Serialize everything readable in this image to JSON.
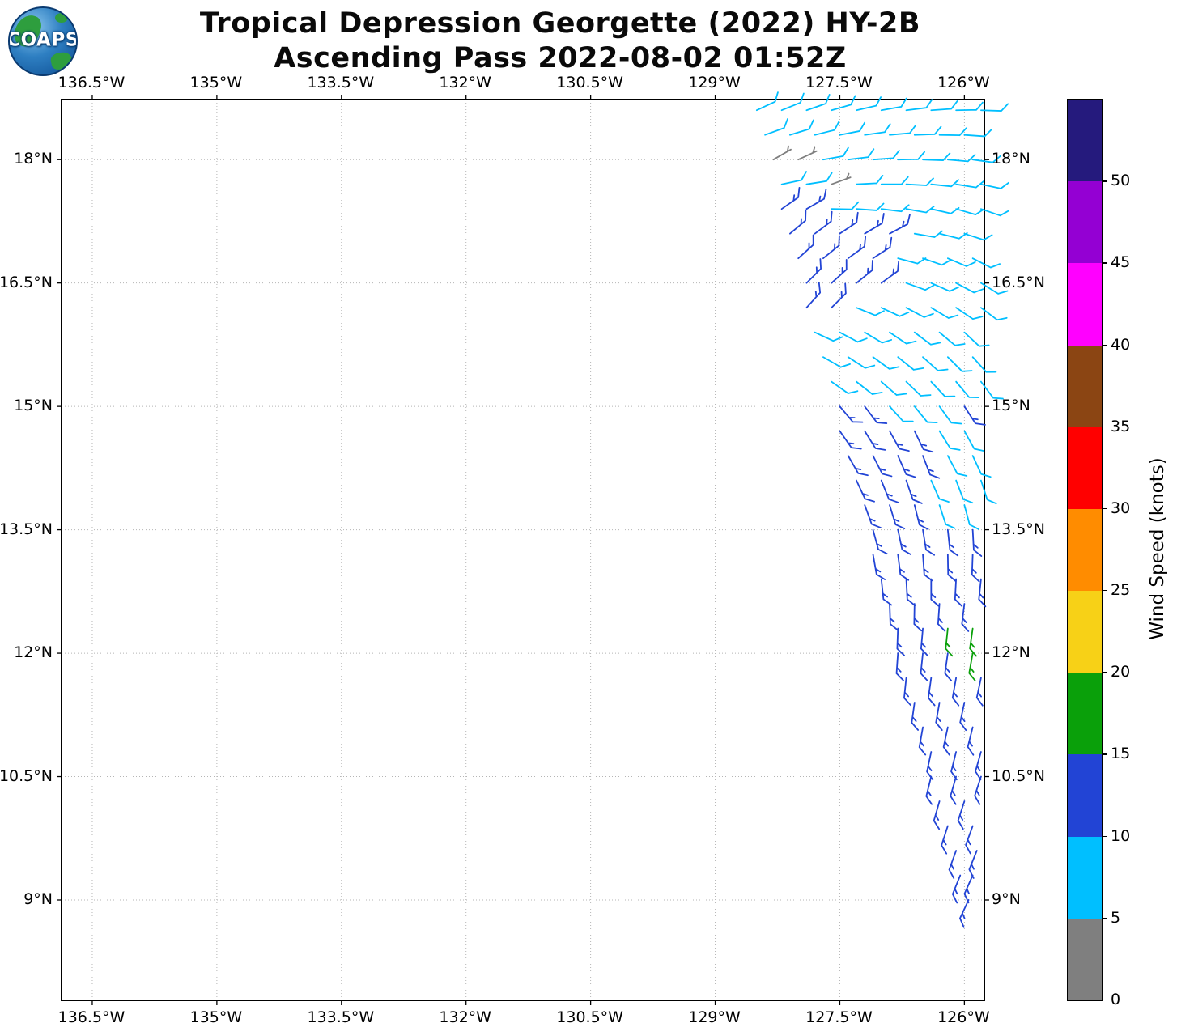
{
  "header": {
    "logo_text": "COAPS",
    "title_line1": "Tropical Depression Georgette (2022) HY-2B",
    "title_line2": "Ascending Pass 2022-08-02 01:52Z"
  },
  "chart_data": {
    "type": "wind_barb_map",
    "title": "Tropical Depression Georgette (2022) HY-2B",
    "subtitle": "Ascending Pass 2022-08-02 01:52Z",
    "grid": true,
    "x_axis": {
      "range": [
        -136.87,
        -125.76
      ],
      "ticks": [
        {
          "value": -136.5,
          "label": "136.5°W"
        },
        {
          "value": -135.0,
          "label": "135°W"
        },
        {
          "value": -133.5,
          "label": "133.5°W"
        },
        {
          "value": -132.0,
          "label": "132°W"
        },
        {
          "value": -130.5,
          "label": "130.5°W"
        },
        {
          "value": -129.0,
          "label": "129°W"
        },
        {
          "value": -127.5,
          "label": "127.5°W"
        },
        {
          "value": -126.0,
          "label": "126°W"
        }
      ]
    },
    "y_axis": {
      "range": [
        7.78,
        18.73
      ],
      "ticks": [
        {
          "value": 18.0,
          "label": "18°N"
        },
        {
          "value": 16.5,
          "label": "16.5°N"
        },
        {
          "value": 15.0,
          "label": "15°N"
        },
        {
          "value": 13.5,
          "label": "13.5°N"
        },
        {
          "value": 12.0,
          "label": "12°N"
        },
        {
          "value": 10.5,
          "label": "10.5°N"
        },
        {
          "value": 9.0,
          "label": "9°N"
        }
      ]
    },
    "colorbar": {
      "label": "Wind Speed (knots)",
      "min": 0,
      "max": 55,
      "tick_values": [
        0,
        5,
        10,
        15,
        20,
        25,
        30,
        35,
        40,
        45,
        50
      ],
      "segments": [
        {
          "from": 0,
          "to": 5,
          "color": "#7f7f7f"
        },
        {
          "from": 5,
          "to": 10,
          "color": "#00bfff"
        },
        {
          "from": 10,
          "to": 15,
          "color": "#2244d5"
        },
        {
          "from": 15,
          "to": 20,
          "color": "#0aa00a"
        },
        {
          "from": 20,
          "to": 25,
          "color": "#f7d117"
        },
        {
          "from": 25,
          "to": 30,
          "color": "#ff8c00"
        },
        {
          "from": 30,
          "to": 35,
          "color": "#ff0000"
        },
        {
          "from": 35,
          "to": 40,
          "color": "#8b4513"
        },
        {
          "from": 40,
          "to": 45,
          "color": "#ff00ff"
        },
        {
          "from": 45,
          "to": 50,
          "color": "#9400d3"
        },
        {
          "from": 50,
          "to": 55,
          "color": "#251a7d"
        }
      ]
    },
    "barb_units": {
      "speed": "knots",
      "direction": "degrees meteorological (from)"
    },
    "barbs": [
      [
        -128.5,
        18.6,
        8,
        65
      ],
      [
        -128.2,
        18.6,
        8,
        68
      ],
      [
        -127.9,
        18.6,
        8,
        71
      ],
      [
        -127.6,
        18.6,
        8,
        74
      ],
      [
        -127.3,
        18.6,
        8,
        77
      ],
      [
        -127.0,
        18.6,
        8,
        80
      ],
      [
        -126.7,
        18.6,
        8,
        83
      ],
      [
        -126.4,
        18.6,
        8,
        86
      ],
      [
        -126.1,
        18.6,
        8,
        89
      ],
      [
        -125.8,
        18.6,
        8,
        92
      ],
      [
        -128.4,
        18.3,
        8,
        70
      ],
      [
        -128.1,
        18.3,
        8,
        73
      ],
      [
        -127.8,
        18.3,
        8,
        76
      ],
      [
        -127.5,
        18.3,
        8,
        79
      ],
      [
        -127.2,
        18.3,
        8,
        82
      ],
      [
        -126.9,
        18.3,
        8,
        85
      ],
      [
        -126.6,
        18.3,
        8,
        88
      ],
      [
        -126.3,
        18.3,
        8,
        91
      ],
      [
        -126.0,
        18.3,
        8,
        94
      ],
      [
        -128.3,
        18.0,
        3,
        60
      ],
      [
        -128.0,
        18.0,
        3,
        65
      ],
      [
        -127.7,
        18.0,
        8,
        80
      ],
      [
        -127.4,
        18.0,
        8,
        83
      ],
      [
        -127.1,
        18.0,
        8,
        86
      ],
      [
        -126.8,
        18.0,
        8,
        89
      ],
      [
        -126.5,
        18.0,
        8,
        92
      ],
      [
        -126.2,
        18.0,
        8,
        95
      ],
      [
        -125.9,
        18.0,
        8,
        98
      ],
      [
        -128.2,
        17.7,
        8,
        78
      ],
      [
        -127.9,
        17.7,
        8,
        81
      ],
      [
        -127.6,
        17.7,
        3,
        70
      ],
      [
        -127.3,
        17.7,
        8,
        87
      ],
      [
        -127.0,
        17.7,
        8,
        90
      ],
      [
        -126.7,
        17.7,
        8,
        93
      ],
      [
        -126.4,
        17.7,
        8,
        96
      ],
      [
        -126.1,
        17.7,
        8,
        99
      ],
      [
        -125.8,
        17.7,
        8,
        102
      ],
      [
        -128.2,
        17.4,
        13,
        55
      ],
      [
        -127.9,
        17.4,
        13,
        60
      ],
      [
        -127.6,
        17.4,
        8,
        91
      ],
      [
        -127.3,
        17.4,
        8,
        94
      ],
      [
        -127.0,
        17.4,
        8,
        97
      ],
      [
        -126.7,
        17.4,
        8,
        100
      ],
      [
        -126.4,
        17.4,
        8,
        103
      ],
      [
        -126.1,
        17.4,
        8,
        106
      ],
      [
        -125.8,
        17.4,
        8,
        109
      ],
      [
        -128.1,
        17.1,
        13,
        50
      ],
      [
        -127.8,
        17.1,
        13,
        53
      ],
      [
        -127.5,
        17.1,
        13,
        56
      ],
      [
        -127.2,
        17.1,
        13,
        59
      ],
      [
        -126.9,
        17.1,
        13,
        62
      ],
      [
        -126.6,
        17.1,
        8,
        100
      ],
      [
        -126.3,
        17.1,
        8,
        104
      ],
      [
        -126.0,
        17.1,
        8,
        108
      ],
      [
        -128.0,
        16.8,
        13,
        48
      ],
      [
        -127.7,
        16.8,
        13,
        51
      ],
      [
        -127.4,
        16.8,
        13,
        54
      ],
      [
        -127.1,
        16.8,
        13,
        57
      ],
      [
        -126.8,
        16.8,
        8,
        105
      ],
      [
        -126.5,
        16.8,
        8,
        109
      ],
      [
        -126.2,
        16.8,
        8,
        113
      ],
      [
        -125.9,
        16.8,
        8,
        117
      ],
      [
        -127.9,
        16.5,
        13,
        45
      ],
      [
        -127.6,
        16.5,
        13,
        48
      ],
      [
        -127.3,
        16.5,
        13,
        51
      ],
      [
        -127.0,
        16.5,
        13,
        54
      ],
      [
        -126.7,
        16.5,
        8,
        110
      ],
      [
        -126.4,
        16.5,
        8,
        114
      ],
      [
        -126.1,
        16.5,
        8,
        118
      ],
      [
        -125.8,
        16.5,
        8,
        122
      ],
      [
        -127.9,
        16.2,
        13,
        42
      ],
      [
        -127.6,
        16.2,
        13,
        45
      ],
      [
        -127.3,
        16.2,
        8,
        112
      ],
      [
        -127.0,
        16.2,
        8,
        115
      ],
      [
        -126.7,
        16.2,
        8,
        118
      ],
      [
        -126.4,
        16.2,
        8,
        121
      ],
      [
        -126.1,
        16.2,
        8,
        124
      ],
      [
        -125.8,
        16.2,
        8,
        127
      ],
      [
        -127.8,
        15.9,
        8,
        115
      ],
      [
        -127.5,
        15.9,
        8,
        118
      ],
      [
        -127.2,
        15.9,
        8,
        121
      ],
      [
        -126.9,
        15.9,
        8,
        124
      ],
      [
        -126.6,
        15.9,
        8,
        127
      ],
      [
        -126.3,
        15.9,
        8,
        130
      ],
      [
        -126.0,
        15.9,
        8,
        133
      ],
      [
        -127.7,
        15.6,
        8,
        120
      ],
      [
        -127.4,
        15.6,
        8,
        123
      ],
      [
        -127.1,
        15.6,
        8,
        126
      ],
      [
        -126.8,
        15.6,
        8,
        129
      ],
      [
        -126.5,
        15.6,
        8,
        132
      ],
      [
        -126.2,
        15.6,
        8,
        135
      ],
      [
        -125.9,
        15.6,
        8,
        138
      ],
      [
        -127.6,
        15.3,
        8,
        125
      ],
      [
        -127.3,
        15.3,
        8,
        128
      ],
      [
        -127.0,
        15.3,
        8,
        131
      ],
      [
        -126.7,
        15.3,
        8,
        134
      ],
      [
        -126.4,
        15.3,
        8,
        137
      ],
      [
        -126.1,
        15.3,
        8,
        140
      ],
      [
        -125.8,
        15.3,
        8,
        143
      ],
      [
        -127.5,
        15.0,
        13,
        140
      ],
      [
        -127.2,
        15.0,
        13,
        143
      ],
      [
        -126.9,
        15.0,
        8,
        138
      ],
      [
        -126.6,
        15.0,
        8,
        141
      ],
      [
        -126.3,
        15.0,
        8,
        144
      ],
      [
        -126.0,
        15.0,
        13,
        147
      ],
      [
        -127.5,
        14.7,
        13,
        145
      ],
      [
        -127.2,
        14.7,
        13,
        148
      ],
      [
        -126.9,
        14.7,
        13,
        151
      ],
      [
        -126.6,
        14.7,
        13,
        154
      ],
      [
        -126.3,
        14.7,
        8,
        148
      ],
      [
        -126.0,
        14.7,
        8,
        151
      ],
      [
        -127.4,
        14.4,
        13,
        150
      ],
      [
        -127.1,
        14.4,
        13,
        153
      ],
      [
        -126.8,
        14.4,
        13,
        156
      ],
      [
        -126.5,
        14.4,
        13,
        159
      ],
      [
        -126.2,
        14.4,
        8,
        152
      ],
      [
        -125.9,
        14.4,
        8,
        155
      ],
      [
        -127.3,
        14.1,
        13,
        155
      ],
      [
        -127.0,
        14.1,
        13,
        158
      ],
      [
        -126.7,
        14.1,
        13,
        161
      ],
      [
        -126.4,
        14.1,
        8,
        156
      ],
      [
        -126.1,
        14.1,
        8,
        159
      ],
      [
        -125.8,
        14.1,
        8,
        162
      ],
      [
        -127.2,
        13.8,
        13,
        160
      ],
      [
        -126.9,
        13.8,
        13,
        163
      ],
      [
        -126.6,
        13.8,
        13,
        166
      ],
      [
        -126.3,
        13.8,
        8,
        162
      ],
      [
        -126.0,
        13.8,
        8,
        165
      ],
      [
        -127.1,
        13.5,
        13,
        165
      ],
      [
        -126.8,
        13.5,
        13,
        168
      ],
      [
        -126.5,
        13.5,
        13,
        171
      ],
      [
        -126.2,
        13.5,
        13,
        174
      ],
      [
        -125.9,
        13.5,
        13,
        177
      ],
      [
        -127.1,
        13.2,
        13,
        170
      ],
      [
        -126.8,
        13.2,
        13,
        173
      ],
      [
        -126.5,
        13.2,
        13,
        176
      ],
      [
        -126.2,
        13.2,
        13,
        179
      ],
      [
        -125.9,
        13.2,
        13,
        182
      ],
      [
        -127.0,
        12.9,
        13,
        174
      ],
      [
        -126.7,
        12.9,
        13,
        177
      ],
      [
        -126.4,
        12.9,
        13,
        180
      ],
      [
        -126.1,
        12.9,
        13,
        183
      ],
      [
        -125.8,
        12.9,
        13,
        186
      ],
      [
        -126.9,
        12.6,
        13,
        178
      ],
      [
        -126.6,
        12.6,
        13,
        181
      ],
      [
        -126.3,
        12.6,
        13,
        184
      ],
      [
        -126.0,
        12.6,
        13,
        187
      ],
      [
        -126.8,
        12.3,
        13,
        182
      ],
      [
        -126.5,
        12.3,
        13,
        185
      ],
      [
        -126.2,
        12.3,
        17,
        186
      ],
      [
        -125.9,
        12.3,
        17,
        188
      ],
      [
        -126.8,
        12.0,
        13,
        184
      ],
      [
        -126.5,
        12.0,
        13,
        186
      ],
      [
        -126.2,
        12.0,
        13,
        188
      ],
      [
        -125.9,
        12.0,
        17,
        190
      ],
      [
        -126.7,
        11.7,
        13,
        186
      ],
      [
        -126.4,
        11.7,
        13,
        188
      ],
      [
        -126.1,
        11.7,
        13,
        190
      ],
      [
        -125.8,
        11.7,
        13,
        192
      ],
      [
        -126.6,
        11.4,
        13,
        188
      ],
      [
        -126.3,
        11.4,
        13,
        190
      ],
      [
        -126.0,
        11.4,
        13,
        192
      ],
      [
        -126.5,
        11.1,
        13,
        190
      ],
      [
        -126.2,
        11.1,
        13,
        192
      ],
      [
        -125.9,
        11.1,
        13,
        194
      ],
      [
        -126.4,
        10.8,
        13,
        192
      ],
      [
        -126.1,
        10.8,
        13,
        194
      ],
      [
        -125.8,
        10.8,
        13,
        196
      ],
      [
        -126.4,
        10.5,
        13,
        194
      ],
      [
        -126.1,
        10.5,
        13,
        196
      ],
      [
        -125.8,
        10.5,
        13,
        198
      ],
      [
        -126.3,
        10.2,
        13,
        196
      ],
      [
        -126.0,
        10.2,
        13,
        198
      ],
      [
        -126.2,
        9.9,
        13,
        198
      ],
      [
        -125.9,
        9.9,
        13,
        200
      ],
      [
        -126.1,
        9.6,
        13,
        200
      ],
      [
        -125.85,
        9.6,
        13,
        202
      ],
      [
        -126.05,
        9.3,
        13,
        202
      ],
      [
        -125.9,
        9.3,
        13,
        204
      ],
      [
        -125.95,
        9.0,
        13,
        205
      ]
    ]
  }
}
